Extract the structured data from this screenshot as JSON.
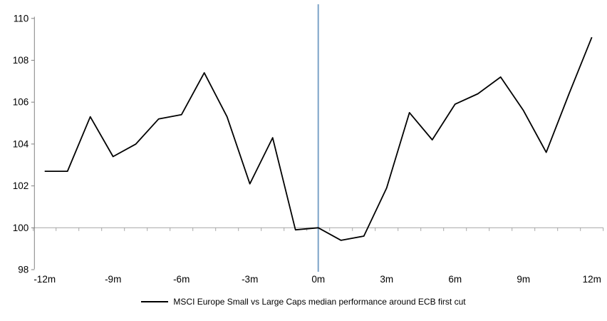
{
  "chart_data": {
    "type": "line",
    "x": [
      -12,
      -11,
      -10,
      -9,
      -8,
      -7,
      -6,
      -5,
      -4,
      -3,
      -2,
      -1,
      0,
      1,
      2,
      3,
      4,
      5,
      6,
      7,
      8,
      9,
      10,
      11,
      12
    ],
    "series": [
      {
        "name": "MSCI Europe Small vs Large Caps median performance around ECB first cut",
        "color": "#000000",
        "values": [
          102.7,
          102.7,
          105.3,
          103.4,
          104.0,
          105.2,
          105.4,
          107.4,
          105.3,
          102.1,
          104.3,
          99.9,
          100.0,
          99.4,
          99.6,
          101.9,
          105.5,
          104.2,
          105.9,
          106.4,
          107.2,
          105.6,
          103.6,
          106.4,
          109.1
        ]
      }
    ],
    "y_ticks": [
      98,
      100,
      102,
      104,
      106,
      108,
      110
    ],
    "y_tick_labels": [
      "98",
      "100",
      "102",
      "104",
      "106",
      "108",
      "110"
    ],
    "x_tick_positions": [
      -12,
      -9,
      -6,
      -3,
      0,
      3,
      6,
      9,
      12
    ],
    "x_tick_labels": [
      "-12m",
      "-9m",
      "-6m",
      "-3m",
      "0m",
      "3m",
      "6m",
      "9m",
      "12m"
    ],
    "ylim": [
      98,
      110
    ],
    "xlim": [
      -12.5,
      12.5
    ],
    "baseline_value": 100,
    "event_line_x": 0,
    "grid": "off",
    "legend_position": "bottom-center",
    "colors": {
      "series": "#000000",
      "event_line": "#7CA3C8",
      "baseline_axis": "#A6A6A6",
      "value_axis": "#808080",
      "text": "#000000"
    }
  },
  "legend": {
    "label": "MSCI Europe Small vs Large Caps median performance around ECB first cut"
  }
}
